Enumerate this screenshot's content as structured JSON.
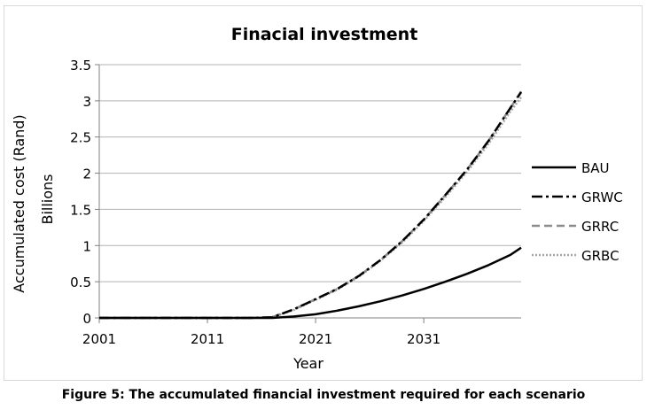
{
  "caption": "Figure 5: The accumulated financial investment required for each scenario",
  "chart_data": {
    "type": "line",
    "title": "Finacial investment",
    "xlabel": "Year",
    "ylabel": "Accumulated cost (Rand)",
    "yunit_label": "Billions",
    "xlim": [
      2001,
      2040
    ],
    "ylim": [
      0,
      3.5
    ],
    "xticks": [
      "2001",
      "2011",
      "2021",
      "2031"
    ],
    "yticks": [
      "0",
      "0.5",
      "1",
      "1.5",
      "2",
      "2.5",
      "3",
      "3.5"
    ],
    "grid": true,
    "legend_position": "right",
    "x": [
      2001,
      2005,
      2010,
      2015,
      2017,
      2019,
      2021,
      2023,
      2025,
      2027,
      2029,
      2031,
      2033,
      2035,
      2037,
      2039,
      2040
    ],
    "series": [
      {
        "name": "BAU",
        "color": "#000000",
        "dash": "solid",
        "values": [
          0,
          0,
          0,
          0,
          0,
          0.02,
          0.05,
          0.1,
          0.16,
          0.23,
          0.31,
          0.4,
          0.5,
          0.61,
          0.73,
          0.87,
          0.97
        ]
      },
      {
        "name": "GRWC",
        "color": "#000000",
        "dash": "dashdot",
        "values": [
          0,
          0,
          0,
          0,
          0.01,
          0.12,
          0.26,
          0.4,
          0.58,
          0.8,
          1.06,
          1.36,
          1.7,
          2.05,
          2.45,
          2.9,
          3.12
        ]
      },
      {
        "name": "GRRC",
        "color": "#8c8c8c",
        "dash": "dash",
        "values": [
          0,
          0,
          0,
          0,
          0.01,
          0.12,
          0.26,
          0.4,
          0.58,
          0.8,
          1.06,
          1.36,
          1.7,
          2.05,
          2.45,
          2.9,
          3.13
        ]
      },
      {
        "name": "GRBC",
        "color": "#a6a6a6",
        "dash": "dot",
        "values": [
          0,
          0,
          0,
          0,
          0.01,
          0.11,
          0.25,
          0.39,
          0.57,
          0.79,
          1.04,
          1.34,
          1.67,
          2.02,
          2.41,
          2.85,
          3.05
        ]
      }
    ]
  }
}
